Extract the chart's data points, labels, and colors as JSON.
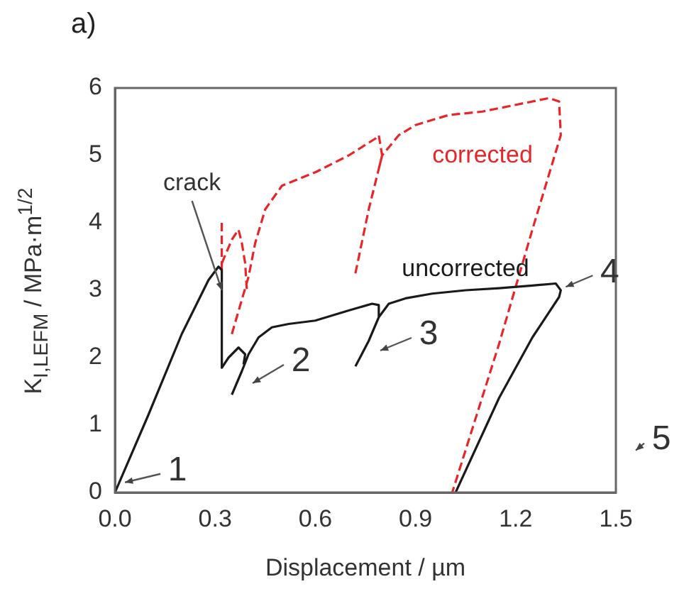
{
  "chart_data": {
    "type": "line",
    "title": "a)",
    "xlabel": "Displacement / µm",
    "ylabel": "K$_{I,LEFM}$ / MPa·m$^{1/2}$",
    "xlim": [
      0,
      1.5
    ],
    "xticks": [
      {
        "value": 0,
        "label": "0.0"
      },
      0.3,
      0.6,
      0.9,
      1.2,
      1.5
    ],
    "ylim": [
      0,
      6
    ],
    "yticks": [
      0,
      1,
      2,
      3,
      4,
      5,
      6
    ],
    "grid": false,
    "legend": false,
    "marker": "none",
    "series": [
      {
        "name": "uncorrected",
        "color": "#1a1a1a",
        "line_style": "solid",
        "x": [
          0,
          0.1,
          0.2,
          0.28,
          0.31,
          0.32,
          0.32,
          0.34,
          0.37,
          0.39,
          0.385,
          null,
          0.35,
          0.38,
          0.4,
          0.43,
          0.47,
          0.52,
          0.6,
          0.7,
          0.77,
          0.79,
          0.79,
          null,
          0.72,
          0.76,
          0.79,
          0.82,
          0.87,
          0.95,
          1.05,
          1.15,
          1.25,
          1.32,
          1.335,
          1.33,
          1.25,
          1.15,
          1.02
        ],
        "values": [
          0,
          1.15,
          2.35,
          3.15,
          3.35,
          3.3,
          1.85,
          2,
          2.15,
          2.05,
          1.9,
          null,
          1.45,
          1.8,
          2.05,
          2.3,
          2.45,
          2.5,
          2.55,
          2.7,
          2.8,
          2.78,
          2.6,
          null,
          1.87,
          2.25,
          2.6,
          2.8,
          2.88,
          2.95,
          3,
          3.03,
          3.07,
          3.1,
          3,
          2.9,
          2.3,
          1.4,
          0
        ]
      },
      {
        "name": "corrected",
        "color": "#e8262a",
        "line_style": "dashed",
        "x": [
          0.32,
          0.32,
          null,
          0.32,
          0.35,
          0.37,
          0.38,
          0.39,
          0.395,
          null,
          0.35,
          0.4,
          0.42,
          0.45,
          0.5,
          0.55,
          0.6,
          0.7,
          0.78,
          0.79,
          0.8,
          0.79,
          null,
          0.72,
          0.76,
          0.8,
          0.85,
          0.9,
          1,
          1.1,
          1.2,
          1.3,
          1.33,
          1.335,
          1.25,
          1.15,
          1.01
        ],
        "values": [
          4,
          3.3,
          null,
          3.4,
          3.75,
          3.9,
          3.7,
          3.4,
          3,
          null,
          2.35,
          3.2,
          3.7,
          4.2,
          4.55,
          4.65,
          4.75,
          5,
          5.25,
          5.3,
          5,
          4.8,
          null,
          3.25,
          4.2,
          5,
          5.3,
          5.45,
          5.6,
          5.65,
          5.75,
          5.85,
          5.8,
          5.3,
          3.9,
          2.2,
          0
        ]
      }
    ],
    "annotations": [
      {
        "text": "crack",
        "x": 0.32,
        "y": 3
      },
      {
        "text": "1",
        "x": 0.03,
        "y": 0.15
      },
      "2",
      "3",
      {
        "text": "4",
        "x": 1.35,
        "y": 3.05
      },
      "5"
    ]
  }
}
